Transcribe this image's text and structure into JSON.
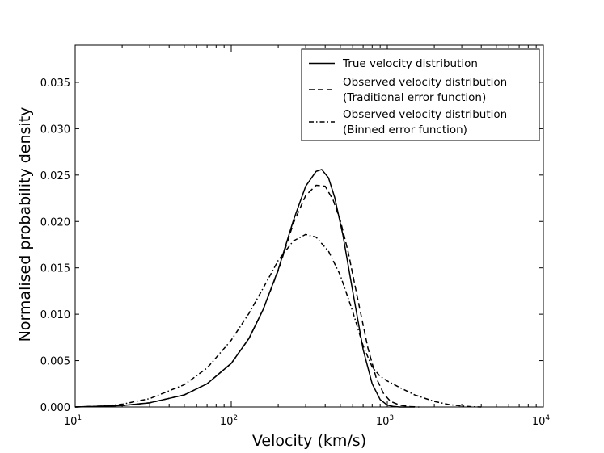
{
  "chart_data": {
    "type": "line",
    "title": "",
    "xlabel": "Velocity (km/s)",
    "ylabel": "Normalised probability density",
    "xscale": "log",
    "xlim": [
      10,
      10000
    ],
    "ylim": [
      0,
      0.039
    ],
    "grid": false,
    "legend_position": "top-right",
    "x_ticks": [
      {
        "value": 10,
        "base": "10",
        "exp": "1"
      },
      {
        "value": 100,
        "base": "10",
        "exp": "2"
      },
      {
        "value": 1000,
        "base": "10",
        "exp": "3"
      },
      {
        "value": 10000,
        "base": "10",
        "exp": "4"
      }
    ],
    "y_ticks": [
      {
        "value": 0.0,
        "label": "0.000"
      },
      {
        "value": 0.005,
        "label": "0.005"
      },
      {
        "value": 0.01,
        "label": "0.010"
      },
      {
        "value": 0.015,
        "label": "0.015"
      },
      {
        "value": 0.02,
        "label": "0.020"
      },
      {
        "value": 0.025,
        "label": "0.025"
      },
      {
        "value": 0.03,
        "label": "0.030"
      },
      {
        "value": 0.035,
        "label": "0.035"
      }
    ],
    "series": [
      {
        "name": "True velocity distribution",
        "style": "solid",
        "x": [
          10,
          20,
          30,
          50,
          70,
          100,
          130,
          160,
          200,
          250,
          300,
          350,
          380,
          420,
          460,
          520,
          600,
          700,
          800,
          900,
          1000,
          1100,
          1200,
          1500
        ],
        "y": [
          0.0,
          0.00015,
          0.00045,
          0.0013,
          0.0025,
          0.0047,
          0.0074,
          0.0105,
          0.0148,
          0.0201,
          0.0238,
          0.0254,
          0.0256,
          0.0247,
          0.0226,
          0.0185,
          0.0125,
          0.0062,
          0.0025,
          0.0008,
          0.0002,
          5e-05,
          0.0,
          0.0
        ]
      },
      {
        "name": "Observed velocity distribution (Traditional error function)",
        "legend_lines": [
          "Observed velocity distribution",
          "(Traditional error function)"
        ],
        "style": "dashed",
        "x": [
          10,
          20,
          30,
          50,
          70,
          100,
          130,
          160,
          200,
          250,
          300,
          350,
          400,
          450,
          500,
          560,
          640,
          750,
          850,
          950,
          1050,
          1200,
          1400,
          1600
        ],
        "y": [
          0.0,
          0.00015,
          0.00045,
          0.0013,
          0.0025,
          0.0047,
          0.0074,
          0.0105,
          0.0147,
          0.0198,
          0.0228,
          0.0239,
          0.0238,
          0.0223,
          0.0201,
          0.0168,
          0.012,
          0.0064,
          0.0031,
          0.0014,
          0.0006,
          0.0002,
          4e-05,
          0.0
        ]
      },
      {
        "name": "Observed velocity distribution (Binned error function)",
        "legend_lines": [
          "Observed velocity distribution",
          "(Binned error function)"
        ],
        "style": "dashdot",
        "x": [
          10,
          15,
          20,
          30,
          50,
          70,
          100,
          130,
          160,
          200,
          250,
          300,
          350,
          420,
          500,
          600,
          700,
          800,
          900,
          1000,
          1200,
          1500,
          2000,
          2500,
          3000,
          3500,
          4000
        ],
        "y": [
          0.0,
          0.0001,
          0.0003,
          0.0009,
          0.0024,
          0.0042,
          0.0072,
          0.0101,
          0.0128,
          0.0158,
          0.0179,
          0.0186,
          0.0183,
          0.0168,
          0.0142,
          0.0103,
          0.0066,
          0.0043,
          0.0033,
          0.0028,
          0.0021,
          0.0013,
          0.0006,
          0.00025,
          0.0001,
          3e-05,
          0.0
        ]
      }
    ]
  }
}
